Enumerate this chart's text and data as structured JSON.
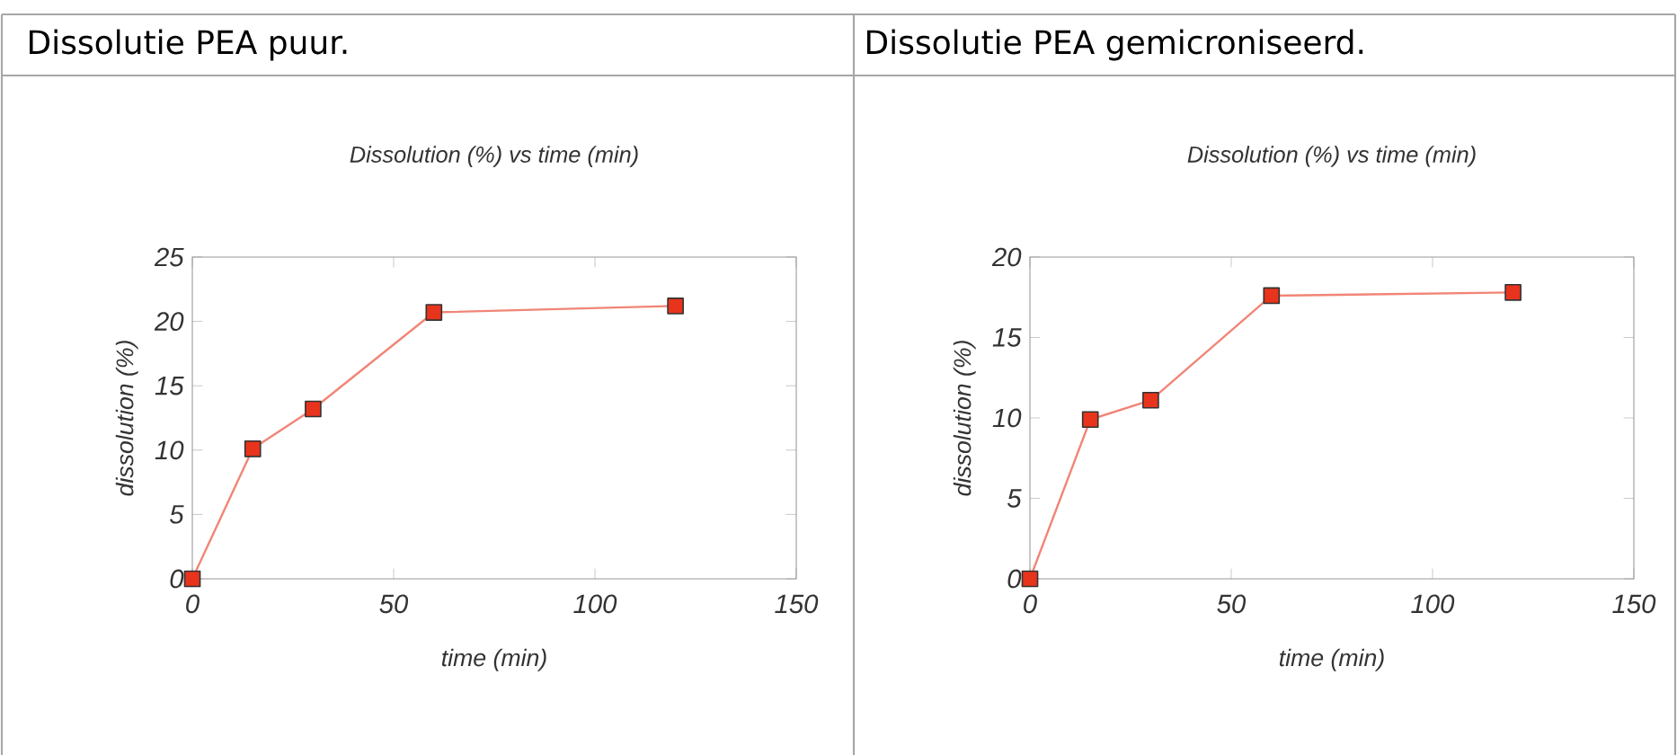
{
  "chart_data": [
    {
      "type": "line",
      "title": "Dissolutie PEA puur.",
      "subtitle": "Dissolution (%) vs time (min)",
      "xlabel": "time (min)",
      "ylabel": "dissolution (%)",
      "xlim": [
        0,
        150
      ],
      "xticks": [
        0,
        50,
        100,
        150
      ],
      "ylim": [
        0,
        25
      ],
      "yticks": [
        0,
        5,
        10,
        15,
        20,
        25
      ],
      "grid": false,
      "marker": "square",
      "line_style": "solid",
      "series": [
        {
          "color": "#e8341c",
          "x": [
            0,
            15,
            30,
            60,
            120
          ],
          "values": [
            0,
            10.1,
            13.2,
            20.7,
            21.2
          ]
        }
      ]
    },
    {
      "type": "line",
      "title": "Dissolutie PEA gemicroniseerd.",
      "subtitle": "Dissolution (%) vs time (min)",
      "xlabel": "time (min)",
      "ylabel": "dissolution (%)",
      "xlim": [
        0,
        150
      ],
      "xticks": [
        0,
        50,
        100,
        150
      ],
      "ylim": [
        0,
        20
      ],
      "yticks": [
        0,
        5,
        10,
        15,
        20
      ],
      "grid": false,
      "marker": "square",
      "line_style": "solid",
      "series": [
        {
          "color": "#e8341c",
          "x": [
            0,
            15,
            30,
            60,
            120
          ],
          "values": [
            0,
            9.9,
            11.1,
            17.6,
            17.8
          ]
        }
      ]
    }
  ]
}
